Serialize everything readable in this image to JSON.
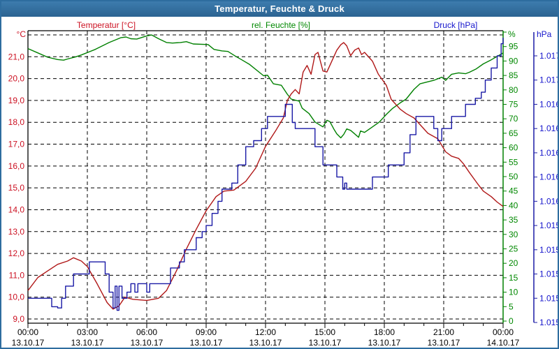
{
  "window": {
    "title": "Temperatur, Feuchte & Druck"
  },
  "legend": {
    "temperature": "Temperatur [°C]",
    "humidity": "rel. Feuchte [%]",
    "pressure": "Druck [hPa]"
  },
  "colors": {
    "frame": "#2e6d9f",
    "temperature_line": "#b01818",
    "temperature_text": "#cc1122",
    "humidity_line": "#008000",
    "humidity_text": "#008800",
    "pressure_line": "#1a1aa6",
    "pressure_text": "#1515cc",
    "grid": "#000000",
    "axis": "#000000",
    "background": "#ffffff"
  },
  "chart_data": {
    "type": "line",
    "title": "Temperatur, Feuchte & Druck",
    "grid": "dashed horizontal per 1 °C, dashed vertical per 3 h",
    "legend_position": "top",
    "x_axis": {
      "range_hours": [
        0,
        24
      ],
      "minor_tick_every_hours": 1,
      "major_tick_every_hours": 3,
      "ticks": [
        {
          "time": "00:00",
          "date": "13.10.17"
        },
        {
          "time": "03:00",
          "date": "13.10.17"
        },
        {
          "time": "06:00",
          "date": "13.10.17"
        },
        {
          "time": "09:00",
          "date": "13.10.17"
        },
        {
          "time": "12:00",
          "date": "13.10.17"
        },
        {
          "time": "15:00",
          "date": "13.10.17"
        },
        {
          "time": "18:00",
          "date": "13.10.17"
        },
        {
          "time": "21:00",
          "date": "13.10.17"
        },
        {
          "time": "00:00",
          "date": "14.10.17"
        }
      ]
    },
    "y_axes": {
      "temperature": {
        "unit": "°C",
        "side": "left",
        "range": [
          9,
          22
        ],
        "gridline_step": 1,
        "tick_labels": [
          {
            "v": 21,
            "label": "21,0"
          },
          {
            "v": 20,
            "label": "20,0"
          },
          {
            "v": 19,
            "label": "19,0"
          },
          {
            "v": 18,
            "label": "18,0"
          },
          {
            "v": 17,
            "label": "17,0"
          },
          {
            "v": 16,
            "label": "16,0"
          },
          {
            "v": 15,
            "label": "15,0"
          },
          {
            "v": 14,
            "label": "14,0"
          },
          {
            "v": 13,
            "label": "13,0"
          },
          {
            "v": 12,
            "label": "12,0"
          },
          {
            "v": 11,
            "label": "11,0"
          },
          {
            "v": 10,
            "label": "10,0"
          },
          {
            "v": 9,
            "label": "9,0"
          }
        ]
      },
      "humidity": {
        "unit": "%",
        "side": "right",
        "range": [
          0,
          100
        ],
        "tick_step": 5,
        "tick_labels": [
          {
            "v": 95,
            "label": "95"
          },
          {
            "v": 90,
            "label": "90"
          },
          {
            "v": 85,
            "label": "85"
          },
          {
            "v": 80,
            "label": "80"
          },
          {
            "v": 75,
            "label": "75"
          },
          {
            "v": 70,
            "label": "70"
          },
          {
            "v": 65,
            "label": "65"
          },
          {
            "v": 60,
            "label": "60"
          },
          {
            "v": 55,
            "label": "55"
          },
          {
            "v": 50,
            "label": "50"
          },
          {
            "v": 45,
            "label": "45"
          },
          {
            "v": 40,
            "label": "40"
          },
          {
            "v": 35,
            "label": "35"
          },
          {
            "v": 30,
            "label": "30"
          },
          {
            "v": 25,
            "label": "25"
          },
          {
            "v": 20,
            "label": "20"
          },
          {
            "v": 15,
            "label": "15"
          },
          {
            "v": 10,
            "label": "10"
          },
          {
            "v": 5,
            "label": "5"
          },
          {
            "v": 0,
            "label": "0"
          }
        ]
      },
      "pressure": {
        "unit": "hPa",
        "side": "far-right",
        "range_hpa": [
          1014.6,
          1016.8
        ],
        "tick_labels_top_to_bottom": [
          "1.017",
          "1.017",
          "1.016",
          "1.016",
          "1.016",
          "1.016",
          "1.016",
          "1.015",
          "1.015",
          "1.015",
          "1.015",
          "1.015"
        ]
      }
    },
    "series": [
      {
        "name": "Temperatur",
        "unit": "°C",
        "axis": "temperature",
        "interpolation": "linear",
        "points": [
          [
            0,
            10.3
          ],
          [
            0.5,
            10.9
          ],
          [
            1,
            11.2
          ],
          [
            1.5,
            11.5
          ],
          [
            2,
            11.65
          ],
          [
            2.3,
            11.8
          ],
          [
            2.7,
            11.65
          ],
          [
            3,
            11.4
          ],
          [
            3.5,
            10.6
          ],
          [
            4,
            9.75
          ],
          [
            4.3,
            9.45
          ],
          [
            4.6,
            9.6
          ],
          [
            4.9,
            10.0
          ],
          [
            5.3,
            9.9
          ],
          [
            6,
            9.85
          ],
          [
            6.6,
            9.95
          ],
          [
            7,
            10.3
          ],
          [
            7.5,
            11.2
          ],
          [
            8,
            12.2
          ],
          [
            8.5,
            13.1
          ],
          [
            9,
            13.95
          ],
          [
            9.5,
            14.6
          ],
          [
            9.9,
            14.85
          ],
          [
            10.4,
            14.9
          ],
          [
            11,
            15.3
          ],
          [
            11.5,
            15.9
          ],
          [
            12,
            16.9
          ],
          [
            12.5,
            17.6
          ],
          [
            12.9,
            18.2
          ],
          [
            13.1,
            19.0
          ],
          [
            13.3,
            19.3
          ],
          [
            13.5,
            19.5
          ],
          [
            13.7,
            19.3
          ],
          [
            13.9,
            20.3
          ],
          [
            14.1,
            20.6
          ],
          [
            14.3,
            20.2
          ],
          [
            14.5,
            21.1
          ],
          [
            14.65,
            21.2
          ],
          [
            14.9,
            20.35
          ],
          [
            15.1,
            20.3
          ],
          [
            15.4,
            20.9
          ],
          [
            15.6,
            21.3
          ],
          [
            15.8,
            21.55
          ],
          [
            15.95,
            21.65
          ],
          [
            16.1,
            21.5
          ],
          [
            16.3,
            21.05
          ],
          [
            16.5,
            21.3
          ],
          [
            16.7,
            21.4
          ],
          [
            16.85,
            21.1
          ],
          [
            17,
            21.2
          ],
          [
            17.4,
            20.8
          ],
          [
            17.7,
            20.2
          ],
          [
            18.1,
            19.7
          ],
          [
            18.35,
            19.05
          ],
          [
            18.8,
            18.6
          ],
          [
            19.1,
            18.4
          ],
          [
            19.5,
            18.2
          ],
          [
            19.8,
            17.9
          ],
          [
            20.2,
            17.5
          ],
          [
            20.7,
            17.25
          ],
          [
            21.1,
            16.65
          ],
          [
            21.4,
            16.45
          ],
          [
            21.75,
            16.35
          ],
          [
            22,
            16.1
          ],
          [
            22.3,
            15.7
          ],
          [
            22.7,
            15.2
          ],
          [
            23,
            14.85
          ],
          [
            23.4,
            14.6
          ],
          [
            23.7,
            14.35
          ],
          [
            24,
            14.15
          ]
        ]
      },
      {
        "name": "rel. Feuchte",
        "unit": "%",
        "axis": "humidity",
        "interpolation": "linear",
        "points": [
          [
            0,
            94.3
          ],
          [
            0.5,
            92.8
          ],
          [
            1,
            91.3
          ],
          [
            1.5,
            90.5
          ],
          [
            1.8,
            90.3
          ],
          [
            2,
            90.7
          ],
          [
            2.4,
            91.4
          ],
          [
            2.7,
            92.1
          ],
          [
            3.4,
            94
          ],
          [
            4.1,
            96.4
          ],
          [
            4.7,
            98.1
          ],
          [
            4.95,
            98.3
          ],
          [
            5.2,
            97.7
          ],
          [
            5.5,
            97.6
          ],
          [
            6,
            98.7
          ],
          [
            6.25,
            99
          ],
          [
            6.6,
            97.7
          ],
          [
            7,
            96.4
          ],
          [
            7.3,
            96.2
          ],
          [
            7.7,
            96.4
          ],
          [
            8,
            96.7
          ],
          [
            8.35,
            95.9
          ],
          [
            9.1,
            95.7
          ],
          [
            9.4,
            94
          ],
          [
            9.8,
            93.5
          ],
          [
            10.1,
            93.3
          ],
          [
            10.5,
            91.6
          ],
          [
            10.8,
            90.4
          ],
          [
            11.2,
            88.8
          ],
          [
            11.9,
            84.9
          ],
          [
            12.1,
            85.1
          ],
          [
            12.4,
            82.1
          ],
          [
            12.8,
            81.6
          ],
          [
            13.1,
            78.5
          ],
          [
            13.3,
            76.8
          ],
          [
            13.7,
            76.1
          ],
          [
            13.85,
            73.7
          ],
          [
            14.2,
            71.8
          ],
          [
            14.5,
            68.9
          ],
          [
            14.9,
            67.2
          ],
          [
            15.1,
            69.5
          ],
          [
            15.25,
            69
          ],
          [
            15.45,
            66.5
          ],
          [
            15.6,
            64.8
          ],
          [
            15.8,
            63.4
          ],
          [
            15.95,
            64.6
          ],
          [
            16.1,
            66.5
          ],
          [
            16.3,
            66
          ],
          [
            16.5,
            64.8
          ],
          [
            16.7,
            63.6
          ],
          [
            16.8,
            65.8
          ],
          [
            17,
            65.3
          ],
          [
            17.4,
            67.2
          ],
          [
            17.75,
            68.9
          ],
          [
            18.1,
            71.5
          ],
          [
            18.4,
            73.5
          ],
          [
            18.8,
            75.5
          ],
          [
            19.1,
            76.8
          ],
          [
            19.5,
            80.2
          ],
          [
            19.8,
            82.1
          ],
          [
            20.2,
            82.8
          ],
          [
            20.5,
            83.3
          ],
          [
            20.9,
            84.4
          ],
          [
            21.1,
            83.3
          ],
          [
            21.4,
            85.4
          ],
          [
            21.75,
            85.9
          ],
          [
            22.1,
            85.6
          ],
          [
            22.3,
            86.1
          ],
          [
            22.65,
            87.3
          ],
          [
            23,
            89
          ],
          [
            23.4,
            90.4
          ],
          [
            23.7,
            91.6
          ],
          [
            24,
            92.8
          ]
        ]
      },
      {
        "name": "Druck",
        "unit": "hPa",
        "axis": "pressure",
        "interpolation": "step-after",
        "points": [
          [
            0,
            1014.8
          ],
          [
            1,
            1014.8
          ],
          [
            1.2,
            1014.73
          ],
          [
            1.5,
            1014.72
          ],
          [
            1.7,
            1014.8
          ],
          [
            1.9,
            1014.9
          ],
          [
            2.3,
            1015.0
          ],
          [
            3.1,
            1015.1
          ],
          [
            3.75,
            1015.1
          ],
          [
            3.9,
            1015.0
          ],
          [
            4.1,
            1014.85
          ],
          [
            4.3,
            1014.72
          ],
          [
            4.4,
            1014.9
          ],
          [
            4.5,
            1014.7
          ],
          [
            4.6,
            1014.9
          ],
          [
            4.75,
            1014.8
          ],
          [
            5,
            1014.85
          ],
          [
            5.2,
            1014.92
          ],
          [
            5.4,
            1014.85
          ],
          [
            5.55,
            1014.92
          ],
          [
            5.9,
            1014.92
          ],
          [
            6,
            1014.85
          ],
          [
            6.15,
            1014.92
          ],
          [
            7.1,
            1014.92
          ],
          [
            7.2,
            1015.05
          ],
          [
            7.65,
            1015.1
          ],
          [
            7.9,
            1015.2
          ],
          [
            8.5,
            1015.3
          ],
          [
            8.8,
            1015.35
          ],
          [
            9,
            1015.4
          ],
          [
            9.3,
            1015.5
          ],
          [
            9.6,
            1015.6
          ],
          [
            9.8,
            1015.7
          ],
          [
            10.3,
            1015.75
          ],
          [
            10.6,
            1015.9
          ],
          [
            11,
            1016.05
          ],
          [
            11.4,
            1016.1
          ],
          [
            11.8,
            1016.2
          ],
          [
            12.1,
            1016.3
          ],
          [
            12.9,
            1016.3
          ],
          [
            13,
            1016.4
          ],
          [
            13.2,
            1016.4
          ],
          [
            13.35,
            1016.25
          ],
          [
            13.5,
            1016.2
          ],
          [
            14.2,
            1016.2
          ],
          [
            14.5,
            1016.05
          ],
          [
            14.9,
            1015.9
          ],
          [
            15.5,
            1015.9
          ],
          [
            15.6,
            1015.8
          ],
          [
            15.9,
            1015.7
          ],
          [
            16,
            1015.75
          ],
          [
            16.1,
            1015.7
          ],
          [
            17.3,
            1015.7
          ],
          [
            17.4,
            1015.8
          ],
          [
            18.1,
            1015.8
          ],
          [
            18.2,
            1015.9
          ],
          [
            18.9,
            1015.9
          ],
          [
            19,
            1016.0
          ],
          [
            19.3,
            1016.15
          ],
          [
            19.6,
            1016.3
          ],
          [
            20.4,
            1016.3
          ],
          [
            20.5,
            1016.2
          ],
          [
            20.7,
            1016.1
          ],
          [
            20.9,
            1016.2
          ],
          [
            21.3,
            1016.2
          ],
          [
            21.4,
            1016.3
          ],
          [
            22,
            1016.3
          ],
          [
            22.1,
            1016.4
          ],
          [
            22.6,
            1016.45
          ],
          [
            22.9,
            1016.5
          ],
          [
            23.1,
            1016.6
          ],
          [
            23.4,
            1016.7
          ],
          [
            23.7,
            1016.8
          ],
          [
            23.9,
            1016.9
          ],
          [
            24,
            1016.95
          ]
        ]
      }
    ]
  }
}
